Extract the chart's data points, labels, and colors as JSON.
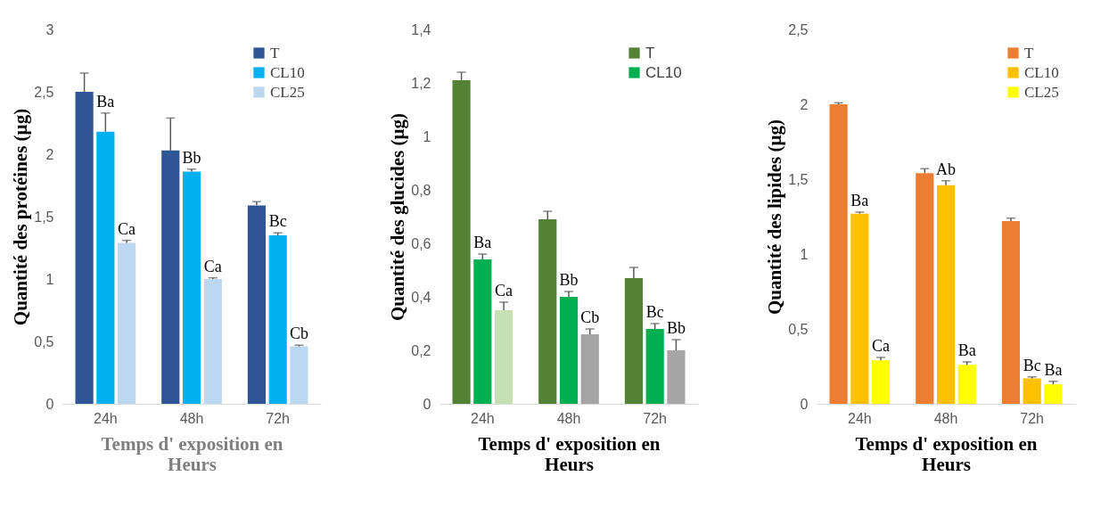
{
  "chart_data": [
    {
      "type": "bar",
      "categories": [
        "24h",
        "48h",
        "72h"
      ],
      "ylabel": "Quantité des protéines (µg)",
      "xlabel": "Temps d' exposition en\nHeurs",
      "ylim": [
        0,
        3
      ],
      "yticks": [
        0,
        {
          "value": 0.5,
          "label": "0,5"
        },
        1,
        {
          "value": 1.5,
          "label": "1,5"
        },
        2,
        {
          "value": 2.5,
          "label": "2,5"
        },
        3
      ],
      "grid": false,
      "legend": "top right",
      "series": [
        {
          "name": "T",
          "color": "#2f5597",
          "values": [
            2.5,
            2.03,
            1.59
          ],
          "errors": [
            [
              2.5,
              2.65
            ],
            [
              2.03,
              2.29
            ],
            [
              1.59,
              1.62
            ]
          ]
        },
        {
          "name": "CL10",
          "color": "#00b0f0",
          "values": [
            2.18,
            1.86,
            1.35
          ],
          "errors": [
            [
              2.18,
              2.33
            ],
            [
              1.86,
              1.88
            ],
            [
              1.35,
              1.37
            ]
          ]
        },
        {
          "name": "CL25",
          "color": "#bdd7ee",
          "values": [
            1.29,
            1.0,
            0.46
          ],
          "errors": [
            [
              1.29,
              1.31
            ],
            [
              1.0,
              1.01
            ],
            [
              0.46,
              0.47
            ]
          ]
        }
      ],
      "annotations": [
        "Ba",
        "Ca",
        "Bb",
        "Ca",
        "Bc",
        "Cb"
      ]
    },
    {
      "type": "bar",
      "categories": [
        "24h",
        "48h",
        "72h"
      ],
      "ylabel": "Quantité des glucides (µg)",
      "xlabel": "Temps d' exposition en\nHeurs",
      "ylim": [
        0,
        1.4
      ],
      "yticks": [
        0,
        {
          "value": 0.2,
          "label": "0,2"
        },
        {
          "value": 0.4,
          "label": "0,4"
        },
        {
          "value": 0.6,
          "label": "0,6"
        },
        {
          "value": 0.8,
          "label": "0,8"
        },
        1,
        {
          "value": 1.2,
          "label": "1,2"
        },
        {
          "value": 1.4,
          "label": "1,4"
        }
      ],
      "grid": false,
      "legend": "top right",
      "series": [
        {
          "name": "T",
          "color": "#548235",
          "values": [
            1.21,
            0.69,
            0.47
          ],
          "errors": [
            [
              1.21,
              1.24
            ],
            [
              0.69,
              0.72
            ],
            [
              0.47,
              0.51
            ]
          ]
        },
        {
          "name": "CL10",
          "color": "#00b050",
          "values": [
            0.54,
            0.4,
            0.28
          ],
          "errors": [
            [
              0.54,
              0.56
            ],
            [
              0.4,
              0.42
            ],
            [
              0.28,
              0.3
            ]
          ]
        },
        {
          "colors": [
            "#c5e0b4",
            "#a5a5a5",
            "#a5a5a5"
          ],
          "values": [
            0.35,
            0.26,
            0.2
          ],
          "errors": [
            [
              0.35,
              0.38
            ],
            [
              0.26,
              0.28
            ],
            [
              0.2,
              0.24
            ]
          ]
        }
      ],
      "annotations": [
        "Ba",
        "Ca",
        "Bb",
        "Cb",
        "Bc",
        "Bb"
      ]
    },
    {
      "type": "bar",
      "categories": [
        "24h",
        "48h",
        "72h"
      ],
      "ylabel": "Quantité des lipides (µg)",
      "xlabel": "Temps d' exposition en\nHeurs",
      "ylim": [
        0,
        2.5
      ],
      "yticks": [
        0,
        {
          "value": 0.5,
          "label": "0,5"
        },
        1,
        {
          "value": 1.5,
          "label": "1,5"
        },
        2,
        {
          "value": 2.5,
          "label": "2,5"
        }
      ],
      "grid": false,
      "legend": "top right",
      "series": [
        {
          "name": "T",
          "color": "#ed7d31",
          "values": [
            2.0,
            1.54,
            1.22
          ],
          "errors": [
            [
              2.0,
              2.01
            ],
            [
              1.54,
              1.57
            ],
            [
              1.22,
              1.24
            ]
          ]
        },
        {
          "name": "CL10",
          "color": "#ffc000",
          "values": [
            1.27,
            1.46,
            0.17
          ],
          "errors": [
            [
              1.27,
              1.28
            ],
            [
              1.46,
              1.49
            ],
            [
              0.17,
              0.18
            ]
          ]
        },
        {
          "name": "CL25",
          "color": "#ffff00",
          "values": [
            0.29,
            0.26,
            0.13
          ],
          "errors": [
            [
              0.29,
              0.31
            ],
            [
              0.26,
              0.28
            ],
            [
              0.13,
              0.15
            ]
          ]
        }
      ],
      "annotations": [
        "Ba",
        "Ca",
        "Ab",
        "Ba",
        "Bc",
        "Ba"
      ]
    }
  ]
}
